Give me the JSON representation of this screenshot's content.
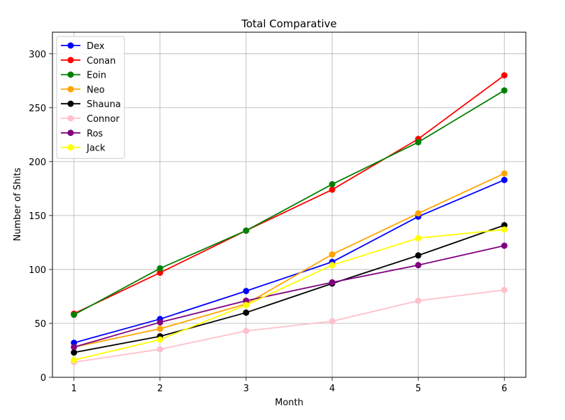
{
  "chart_data": {
    "type": "line",
    "title": "Total Comparative",
    "xlabel": "Month",
    "ylabel": "Number of Shits",
    "x": [
      1,
      2,
      3,
      4,
      5,
      6
    ],
    "xlim": [
      0.75,
      6.25
    ],
    "ylim": [
      0,
      320
    ],
    "x_ticks": [
      "1",
      "2",
      "3",
      "4",
      "5",
      "6"
    ],
    "y_ticks": [
      "0",
      "50",
      "100",
      "150",
      "200",
      "250",
      "300"
    ],
    "grid": true,
    "legend_position": "top-left",
    "series": [
      {
        "name": "Dex",
        "color": "#0000ff",
        "values": [
          32,
          54,
          80,
          107,
          149,
          183
        ]
      },
      {
        "name": "Conan",
        "color": "#ff0000",
        "values": [
          59,
          97,
          136,
          174,
          221,
          280
        ]
      },
      {
        "name": "Eoin",
        "color": "#008000",
        "values": [
          58,
          101,
          136,
          179,
          218,
          266
        ]
      },
      {
        "name": "Neo",
        "color": "#ffa500",
        "values": [
          28,
          45,
          68,
          114,
          152,
          189
        ]
      },
      {
        "name": "Shauna",
        "color": "#000000",
        "values": [
          23,
          38,
          60,
          87,
          113,
          141
        ]
      },
      {
        "name": "Connor",
        "color": "#ffc0cb",
        "values": [
          14,
          26,
          43,
          52,
          71,
          81
        ]
      },
      {
        "name": "Ros",
        "color": "#800080",
        "values": [
          28,
          51,
          71,
          88,
          104,
          122
        ]
      },
      {
        "name": "Jack",
        "color": "#ffff00",
        "values": [
          16,
          35,
          67,
          104,
          129,
          137
        ]
      }
    ]
  }
}
